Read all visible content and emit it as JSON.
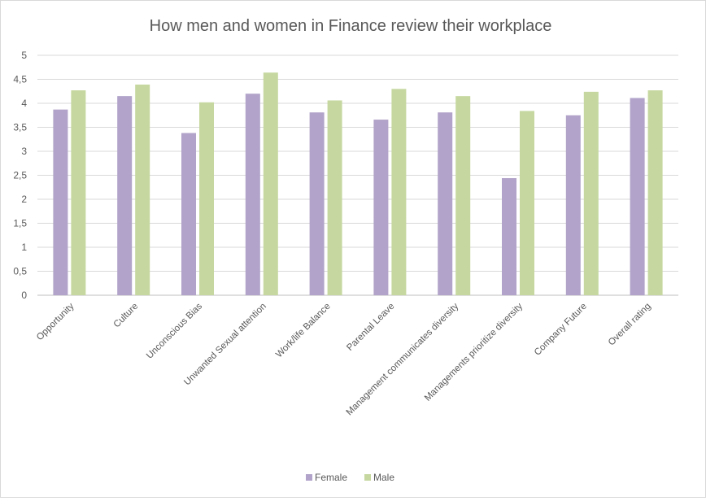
{
  "chart_data": {
    "type": "bar",
    "title": "How men and women in Finance review their workplace",
    "xlabel": "",
    "ylabel": "",
    "ylim": [
      0,
      5
    ],
    "y_ticks": [
      0,
      0.5,
      1,
      1.5,
      2,
      2.5,
      3,
      3.5,
      4,
      4.5,
      5
    ],
    "y_tick_labels": [
      "0",
      "0,5",
      "1",
      "1,5",
      "2",
      "2,5",
      "3",
      "3,5",
      "4",
      "4,5",
      "5"
    ],
    "grid": true,
    "legend_position": "bottom",
    "categories": [
      "Opportunity",
      "Culture",
      "Unconscious Bias",
      "Unwanted Sexual attention",
      "Work/life Balance",
      "Parental Leave",
      "Management communicates diversity",
      "Managements prioritize diversity",
      "Company Future",
      "Overall rating"
    ],
    "series": [
      {
        "name": "Female",
        "color": "#b1a3c9",
        "values": [
          3.87,
          4.15,
          3.38,
          4.2,
          3.81,
          3.66,
          3.81,
          2.44,
          3.75,
          4.11
        ]
      },
      {
        "name": "Male",
        "color": "#c6d8a0",
        "values": [
          4.27,
          4.39,
          4.02,
          4.64,
          4.06,
          4.3,
          4.15,
          3.84,
          4.24,
          4.27
        ]
      }
    ]
  }
}
